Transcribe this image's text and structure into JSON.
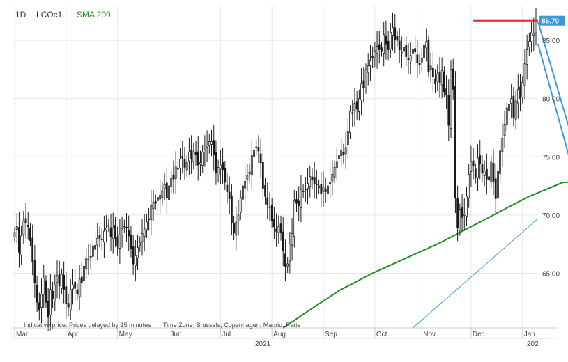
{
  "header": {
    "interval": "1D",
    "symbol": "LCOc1",
    "indicator": "SMA 200",
    "indicator_color": "#1f8f1f"
  },
  "footer": {
    "notice": "Indicative price. Prices delayed by 15 minutes",
    "timezone": "Time Zone: Brussels, Copenhagen, Madrid, Paris"
  },
  "colors": {
    "candles": "#1a1a1a",
    "sma": "#1f8f1f",
    "resistance": "#e8212b",
    "trendlines": "#3a9ad9",
    "price_badge": "#3a9ad9",
    "grid": "#e6e6e6"
  },
  "chart_data": {
    "type": "candlestick",
    "y_axis": {
      "range": [
        60.3,
        88.0
      ],
      "ticks": [
        "65.00",
        "70.00",
        "75.00",
        "80.00",
        "85.00"
      ],
      "position": "right",
      "grid": true
    },
    "x_axis": {
      "months": [
        "Mar",
        "Apr",
        "May",
        "Jun",
        "Jul",
        "Aug",
        "Sep",
        "Oct",
        "Nov",
        "Dec",
        "Jan"
      ],
      "year_labels": [
        "2021",
        "202"
      ]
    },
    "last_price": "86.70",
    "closes": [
      68.5,
      69.0,
      66.8,
      68.2,
      69.5,
      69.3,
      69.0,
      67.8,
      66.0,
      64.2,
      62.5,
      61.8,
      63.2,
      64.6,
      62.5,
      61.2,
      63.6,
      62.8,
      64.0,
      64.8,
      63.9,
      64.9,
      63.6,
      62.4,
      62.1,
      63.6,
      64.0,
      63.7,
      63.2,
      64.5,
      64.2,
      65.6,
      66.3,
      66.2,
      66.4,
      67.3,
      67.4,
      68.0,
      68.0,
      67.9,
      68.6,
      68.9,
      69.1,
      68.1,
      68.9,
      68.0,
      67.4,
      68.3,
      68.8,
      69.0,
      68.9,
      68.2,
      67.1,
      65.8,
      66.5,
      67.2,
      67.6,
      68.4,
      68.8,
      69.4,
      69.6,
      70.8,
      71.1,
      71.0,
      71.5,
      71.7,
      72.1,
      72.6,
      71.5,
      72.5,
      73.2,
      73.1,
      74.2,
      74.0,
      74.8,
      74.9,
      74.1,
      74.5,
      75.4,
      74.8,
      75.5,
      75.2,
      74.3,
      74.5,
      75.4,
      75.6,
      76.0,
      76.3,
      76.3,
      75.2,
      73.6,
      74.1,
      74.3,
      73.9,
      72.8,
      72.0,
      71.4,
      69.3,
      68.5,
      69.4,
      70.0,
      71.5,
      72.5,
      72.9,
      73.4,
      73.7,
      75.1,
      75.6,
      75.8,
      75.5,
      74.5,
      72.3,
      71.6,
      70.9,
      70.7,
      69.5,
      69.0,
      68.6,
      69.0,
      68.5,
      66.9,
      65.6,
      65.8,
      67.5,
      68.4,
      71.2,
      71.0,
      70.8,
      72.2,
      72.0,
      72.2,
      72.7,
      73.3,
      73.0,
      72.7,
      72.6,
      72.5,
      71.8,
      72.4,
      72.0,
      72.5,
      72.8,
      73.5,
      74.1,
      74.6,
      75.1,
      75.6,
      75.2,
      75.8,
      77.2,
      78.9,
      78.8,
      79.6,
      79.1,
      80.0,
      81.3,
      80.9,
      82.5,
      82.8,
      83.3,
      83.6,
      84.1,
      84.5,
      84.2,
      84.1,
      85.5,
      84.7,
      84.2,
      85.7,
      86.1,
      85.1,
      85.0,
      84.2,
      84.0,
      84.4,
      83.6,
      83.4,
      83.7,
      84.2,
      84.0,
      83.1,
      82.9,
      83.5,
      84.6,
      84.9,
      82.3,
      82.8,
      81.9,
      81.3,
      82.1,
      81.4,
      82.4,
      80.6,
      80.3,
      77.7,
      82.5,
      80.8,
      71.5,
      68.9,
      70.5,
      69.8,
      70.1,
      71.6,
      73.5,
      74.6,
      74.2,
      73.2,
      74.9,
      74.4,
      73.6,
      73.8,
      73.1,
      73.0,
      74.6,
      72.9,
      71.4,
      73.8,
      75.5,
      76.6,
      77.8,
      79.2,
      79.5,
      80.0,
      78.4,
      79.8,
      80.8,
      80.0,
      81.4,
      83.0,
      84.2,
      84.9,
      85.7,
      85.6,
      86.7
    ],
    "sma_200": [
      {
        "index": 120,
        "value": 60.3
      },
      {
        "index": 130,
        "value": 61.6
      },
      {
        "index": 145,
        "value": 63.5
      },
      {
        "index": 160,
        "value": 65.0
      },
      {
        "index": 175,
        "value": 66.3
      },
      {
        "index": 190,
        "value": 67.6
      },
      {
        "index": 200,
        "value": 68.6
      },
      {
        "index": 210,
        "value": 69.6
      },
      {
        "index": 220,
        "value": 70.6
      },
      {
        "index": 230,
        "value": 71.6
      },
      {
        "index": 240,
        "value": 72.4
      },
      {
        "index": 245,
        "value": 72.8
      },
      {
        "index": 255,
        "value": 72.9
      },
      {
        "index": 262,
        "value": 73.3
      },
      {
        "index": 270,
        "value": 73.7
      },
      {
        "index": 280,
        "value": 74.8
      }
    ],
    "trendlines": [
      {
        "name": "resistance",
        "points": [
          {
            "index": 205,
            "value": 86.7
          },
          {
            "index": 286,
            "value": 86.7
          }
        ]
      },
      {
        "name": "support-long",
        "points": [
          {
            "index": 178,
            "value": 60.3
          },
          {
            "index": 286,
            "value": 69.7
          }
        ]
      },
      {
        "name": "channel-upper",
        "points": [
          {
            "index": 249,
            "value": 76.7
          },
          {
            "index": 284,
            "value": 86.6
          }
        ]
      },
      {
        "name": "channel-lower",
        "points": [
          {
            "index": 256,
            "value": 69.3
          },
          {
            "index": 286,
            "value": 84.7
          }
        ]
      }
    ]
  }
}
